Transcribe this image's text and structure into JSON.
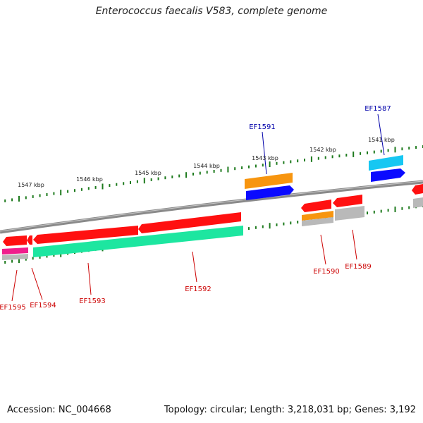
{
  "title": "Enterococcus faecalis V583, complete genome",
  "footer": {
    "accession": "Accession: NC_004668",
    "summary": "Topology: circular; Length: 3,218,031 bp; Genes: 3,192"
  },
  "colors": {
    "backbone": "#8a8a8a",
    "tick": "#1d7a1d",
    "gene": "#ff1010",
    "cds_teal": "#1de6a0",
    "cds_orange": "#f7950f",
    "cds_blue": "#0a0aff",
    "cds_cyan": "#17c7f2",
    "cds_grey": "#b9b9b9",
    "cds_magenta": "#f01e8c",
    "label_red": "#cc0000",
    "label_blue": "#0000aa"
  },
  "kbp_ticks": [
    "1547 kbp",
    "1546 kbp",
    "1545 kbp",
    "1544 kbp",
    "1543 kbp",
    "1542 kbp",
    "1541 kbp"
  ],
  "gene_labels": {
    "top": [
      "EF1591",
      "EF1587"
    ],
    "bottom": [
      "EF1595",
      "EF1594",
      "EF1593",
      "EF1592",
      "EF1590",
      "EF1589"
    ]
  }
}
